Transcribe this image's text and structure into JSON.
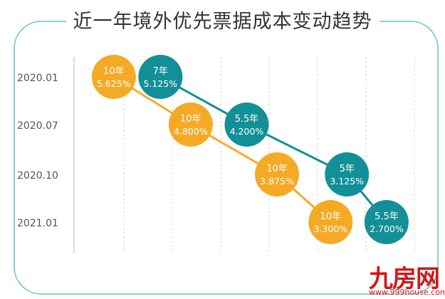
{
  "chart_data": {
    "type": "scatter",
    "title": "近一年境外优先票据成本变动趋势",
    "y_categories": [
      "2020.01",
      "2020.07",
      "2020.10",
      "2021.01"
    ],
    "grid": "vertical-dashed",
    "series": [
      {
        "color": "#f5aa26",
        "points": [
          {
            "tenor": "10年",
            "rate": "5.625%",
            "value": 5.625,
            "date": "2020.01"
          },
          {
            "tenor": "10年",
            "rate": "4.800%",
            "value": 4.8,
            "date": "2020.07"
          },
          {
            "tenor": "10年",
            "rate": "3.875%",
            "value": 3.875,
            "date": "2020.10"
          },
          {
            "tenor": "10年",
            "rate": "3.300%",
            "value": 3.3,
            "date": "2021.01"
          }
        ]
      },
      {
        "color": "#138f98",
        "points": [
          {
            "tenor": "7年",
            "rate": "5.125%",
            "value": 5.125,
            "date": "2020.01"
          },
          {
            "tenor": "5.5年",
            "rate": "4.200%",
            "value": 4.2,
            "date": "2020.07"
          },
          {
            "tenor": "5年",
            "rate": "3.125%",
            "value": 3.125,
            "date": "2020.10"
          },
          {
            "tenor": "5.5年",
            "rate": "2.700%",
            "value": 2.7,
            "date": "2021.01"
          }
        ]
      }
    ]
  },
  "watermark": {
    "logo": "九房网",
    "site": "www.999house.com"
  },
  "colors": {
    "frame": "#5ec3c9",
    "axis": "#b9b9b9",
    "grid": "#d4d4d4",
    "label": "#555555"
  }
}
